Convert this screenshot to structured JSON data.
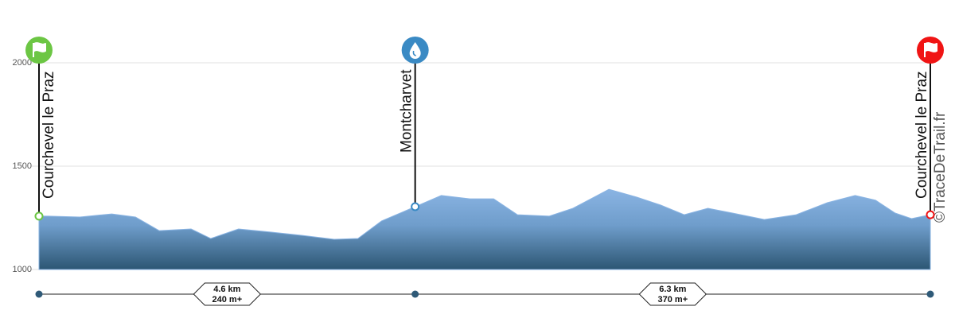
{
  "chart_data": {
    "type": "area",
    "x": [
      0,
      0.11,
      0.5,
      0.89,
      1.18,
      1.47,
      1.86,
      2.1,
      2.44,
      2.83,
      3.22,
      3.61,
      3.9,
      4.19,
      4.6,
      4.92,
      5.27,
      5.56,
      5.85,
      6.24,
      6.53,
      6.97,
      7.31,
      7.6,
      7.89,
      8.18,
      8.48,
      8.87,
      9.26,
      9.64,
      9.98,
      10.23,
      10.47,
      10.67,
      10.9
    ],
    "values": [
      1258,
      1258,
      1254,
      1269,
      1254,
      1188,
      1196,
      1150,
      1196,
      1181,
      1165,
      1146,
      1150,
      1235,
      1304,
      1358,
      1342,
      1342,
      1265,
      1258,
      1296,
      1388,
      1350,
      1312,
      1265,
      1296,
      1273,
      1242,
      1265,
      1323,
      1358,
      1335,
      1273,
      1246,
      1265
    ],
    "xlim": [
      0,
      10.9
    ],
    "ylim": [
      1000,
      2000
    ],
    "yticks": [
      1000,
      1500,
      2000
    ],
    "grid": true,
    "color": "#8ab4e3",
    "waypoints": [
      {
        "name": "Courchevel le Praz",
        "x": 0,
        "icon": "flag",
        "color": "#6cc644"
      },
      {
        "name": "Montcharvet",
        "x": 4.6,
        "icon": "water",
        "color": "#3a8ac4"
      },
      {
        "name": "Courchevel le Praz",
        "x": 10.9,
        "icon": "flag",
        "color": "#f01414"
      }
    ],
    "segments": [
      {
        "distance": "4.6 km",
        "gain": "240 m+"
      },
      {
        "distance": "6.3 km",
        "gain": "370 m+"
      }
    ],
    "watermark": "©TraceDeTrail.fr"
  }
}
